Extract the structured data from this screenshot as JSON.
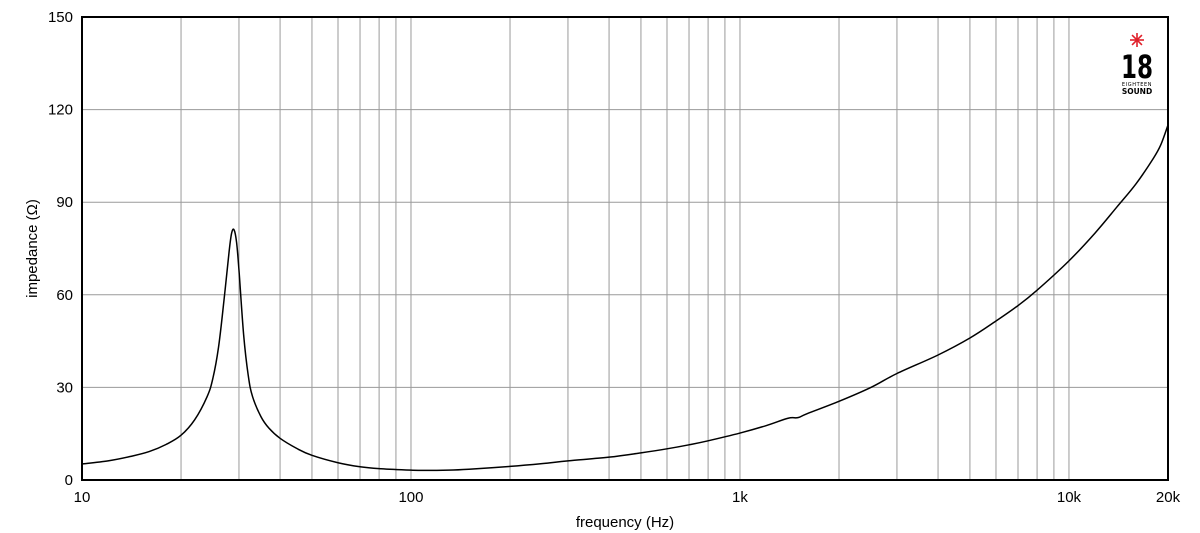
{
  "chart_data": {
    "type": "line",
    "xlabel": "frequency (Hz)",
    "ylabel": "impedance (Ω)",
    "x_scale": "log",
    "xlim": [
      10,
      20000
    ],
    "ylim": [
      0,
      150
    ],
    "x_tick_labels": [
      {
        "value": 10,
        "label": "10"
      },
      {
        "value": 100,
        "label": "100"
      },
      {
        "value": 1000,
        "label": "1k"
      },
      {
        "value": 10000,
        "label": "10k"
      },
      {
        "value": 20000,
        "label": "20k"
      }
    ],
    "y_ticks": [
      0,
      30,
      60,
      90,
      120,
      150
    ],
    "grid": true,
    "line_color": "#000000",
    "series": [
      {
        "x": [
          10,
          12,
          14,
          16,
          18,
          20,
          22,
          24,
          25,
          26,
          27,
          28,
          28.5,
          29,
          29.5,
          30,
          31,
          32,
          33,
          35,
          37,
          40,
          45,
          50,
          60,
          70,
          80,
          100,
          110,
          130,
          150,
          200,
          250,
          300,
          400,
          500,
          600,
          700,
          800,
          1000,
          1200,
          1400,
          1500,
          1600,
          2000,
          2500,
          3000,
          4000,
          5000,
          6000,
          7000,
          8000,
          10000,
          12000,
          14000,
          16000,
          18000,
          19000,
          20000
        ],
        "y": [
          5.2,
          6.2,
          7.6,
          9.2,
          11.5,
          14.5,
          19.5,
          27,
          33,
          43,
          58,
          74,
          80,
          81,
          77,
          68,
          47,
          34,
          27,
          20.5,
          16.8,
          13.5,
          10.2,
          8,
          5.6,
          4.3,
          3.7,
          3.2,
          3.1,
          3.2,
          3.5,
          4.4,
          5.3,
          6.2,
          7.4,
          8.8,
          10.1,
          11.4,
          12.7,
          15.2,
          17.6,
          20,
          20.2,
          21.5,
          25.5,
          30,
          34.5,
          40.5,
          46,
          51.5,
          56.5,
          61.5,
          71,
          80,
          88.5,
          96,
          104,
          108.5,
          115
        ]
      }
    ]
  },
  "logo": {
    "mark": "18",
    "line1": "EIGHTEEN",
    "line2": "SOUND",
    "star_color": "#e0202a"
  }
}
